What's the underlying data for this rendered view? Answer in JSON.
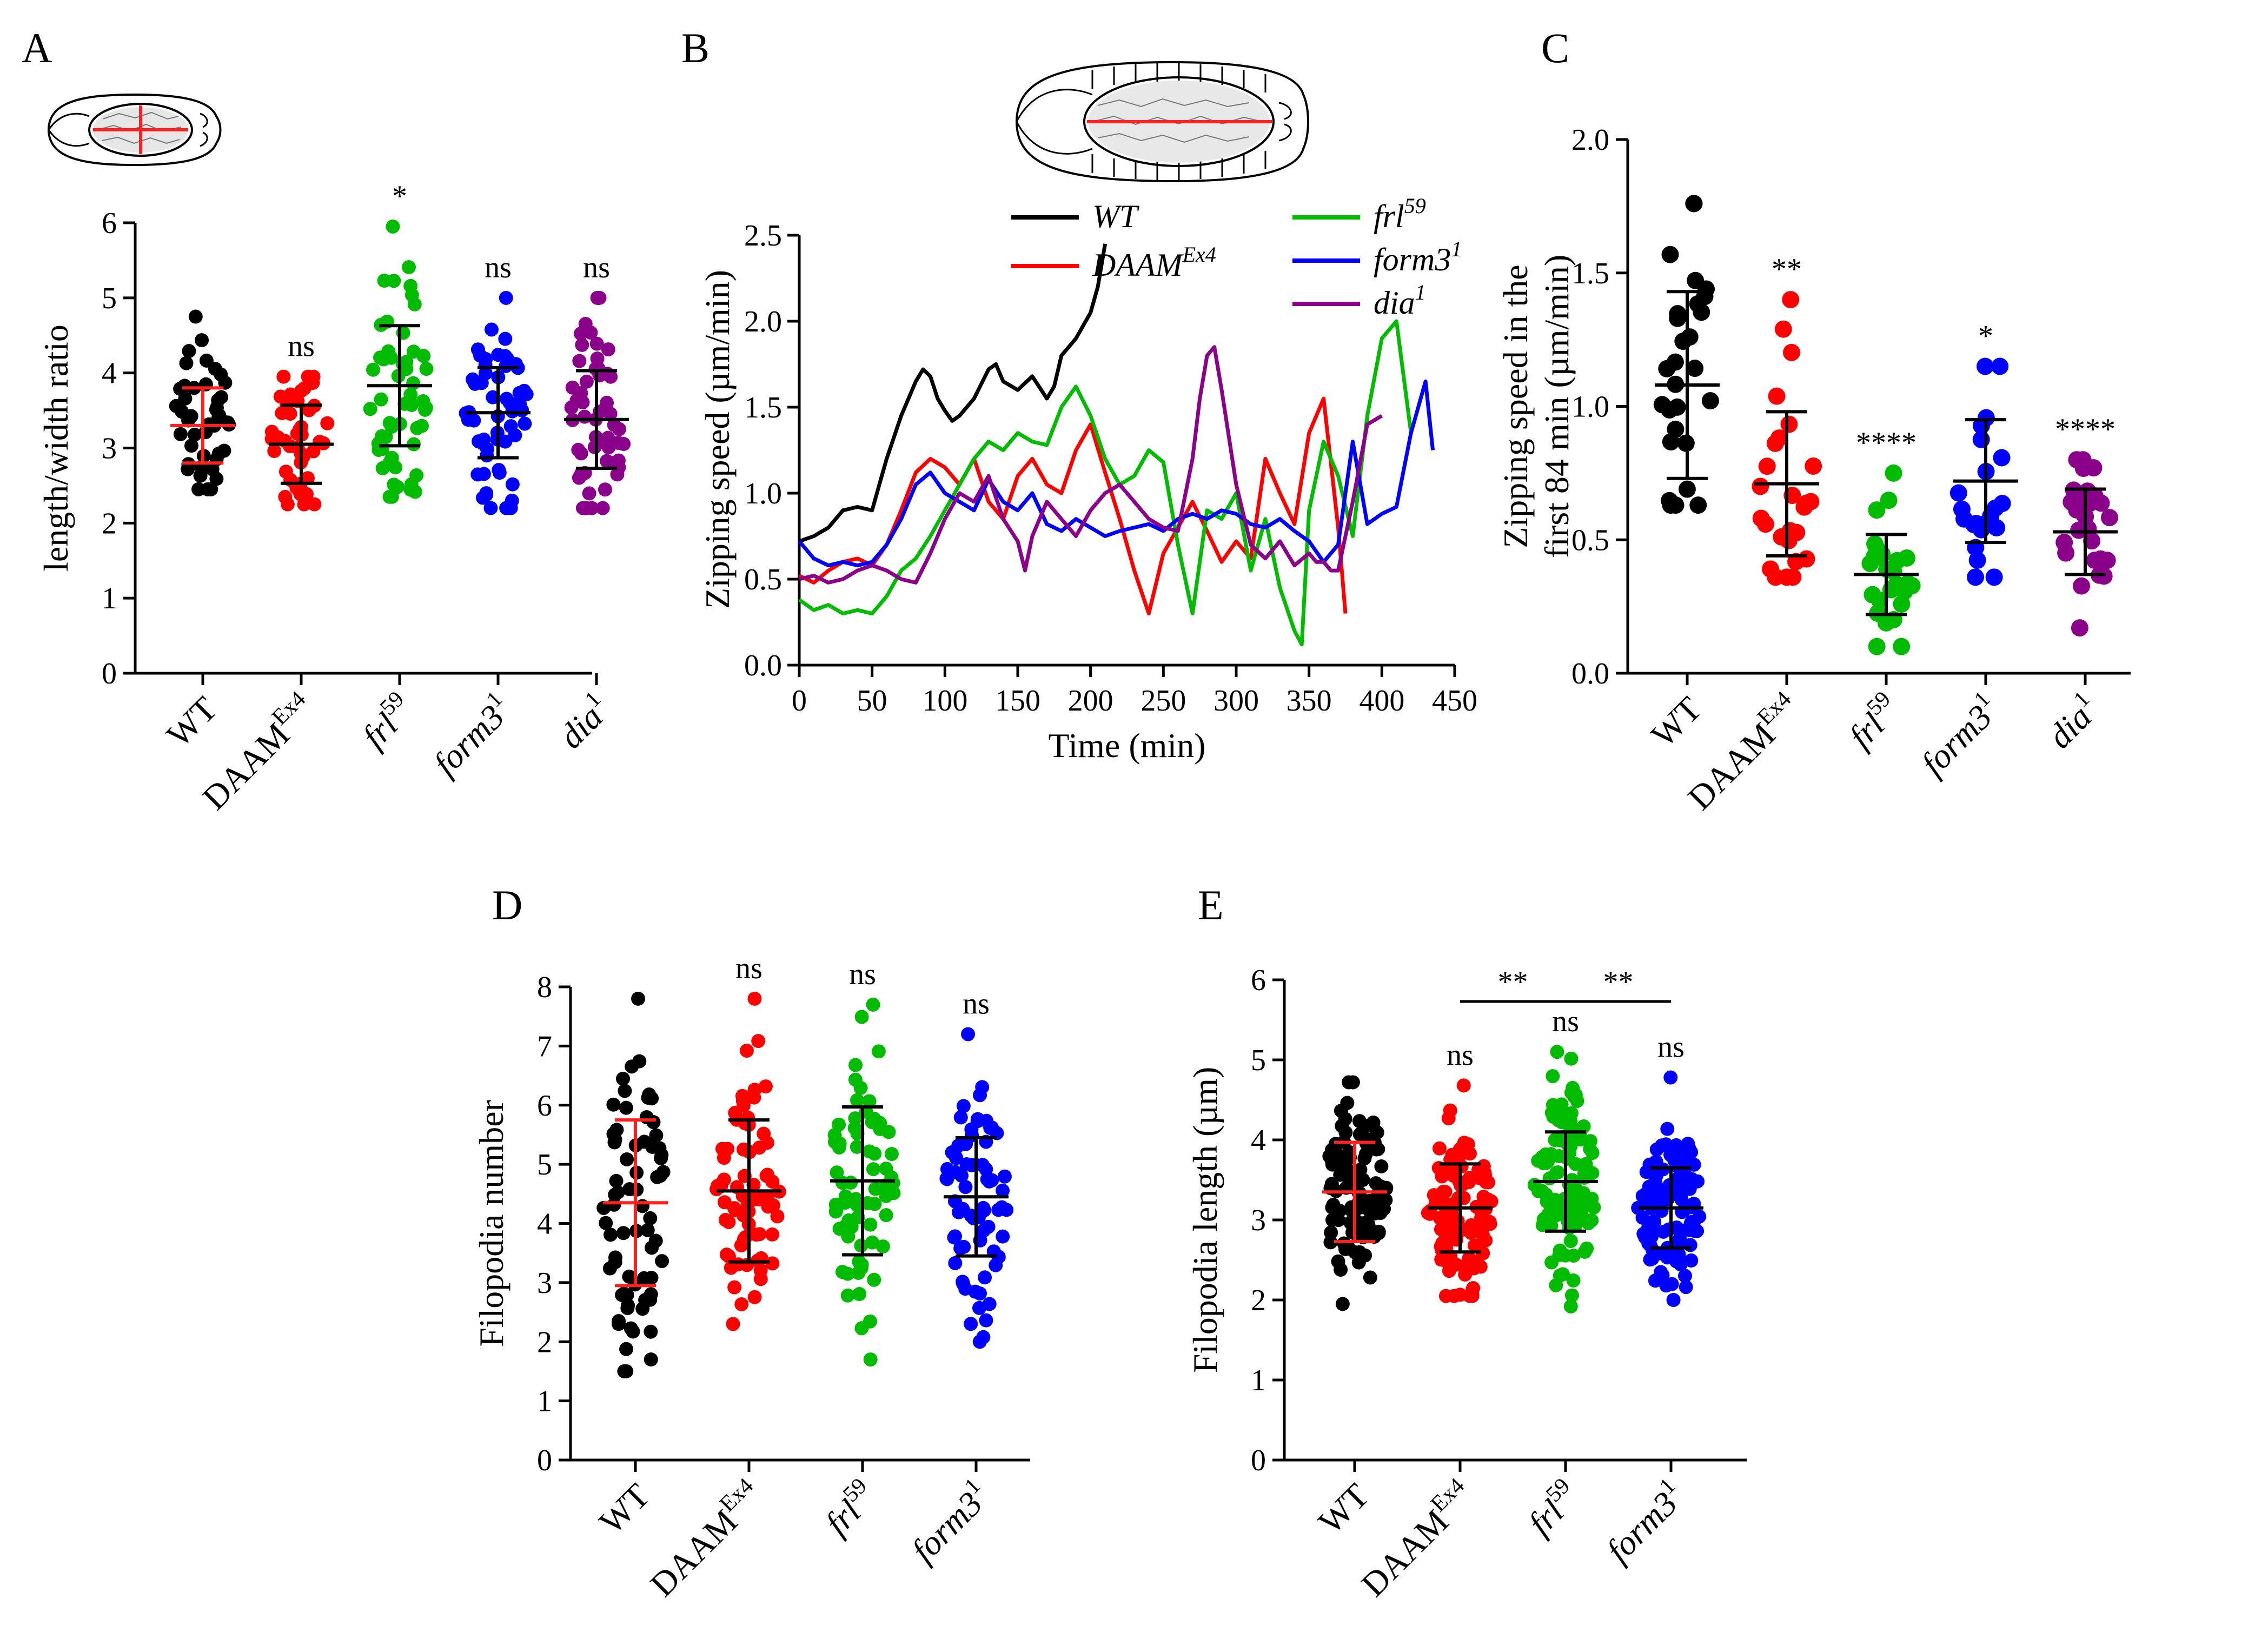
{
  "panel_letters": {
    "A": "A",
    "B": "B",
    "C": "C",
    "D": "D",
    "E": "E"
  },
  "colors": {
    "WT": "#000000",
    "DAAM": "#ff0000",
    "frl": "#00bb00",
    "form3": "#0000ff",
    "dia": "#8b008b",
    "mean_red": "#ff2020"
  },
  "chart_data": [
    {
      "id": "A",
      "type": "scatter",
      "ylabel": "length/width ratio",
      "ylim": [
        0,
        6
      ],
      "yticks": [
        0,
        1,
        2,
        3,
        4,
        5,
        6
      ],
      "categories": [
        {
          "base": "WT",
          "sup": ""
        },
        {
          "base": "DAAM",
          "sup": "Ex4"
        },
        {
          "base": "frl",
          "sup": "59"
        },
        {
          "base": "form3",
          "sup": "1"
        },
        {
          "base": "dia",
          "sup": "1"
        }
      ],
      "series": [
        {
          "color": "#000000",
          "mean": 3.3,
          "sd": 0.5,
          "min": 2.45,
          "max": 4.75,
          "n": 45
        },
        {
          "color": "#ff0000",
          "mean": 3.05,
          "sd": 0.52,
          "min": 2.25,
          "max": 3.95,
          "n": 45
        },
        {
          "color": "#00bb00",
          "mean": 3.83,
          "sd": 0.8,
          "min": 2.35,
          "max": 5.95,
          "n": 55
        },
        {
          "color": "#0000ff",
          "mean": 3.47,
          "sd": 0.6,
          "min": 2.2,
          "max": 5.0,
          "n": 55
        },
        {
          "color": "#8b008b",
          "mean": 3.38,
          "sd": 0.65,
          "min": 2.2,
          "max": 5.0,
          "n": 55
        }
      ],
      "significance": [
        "",
        "ns",
        "*",
        "ns",
        "ns"
      ],
      "wt_error_red": true
    },
    {
      "id": "B",
      "type": "line",
      "xlabel": "Time (min)",
      "ylabel": "Zipping speed (µm/min)",
      "xlim": [
        0,
        450
      ],
      "ylim": [
        0,
        2.5
      ],
      "xticks": [
        0,
        50,
        100,
        150,
        200,
        250,
        300,
        350,
        400,
        450
      ],
      "yticks": [
        0.0,
        0.5,
        1.0,
        1.5,
        2.0,
        2.5
      ],
      "series": [
        {
          "name": "WT",
          "sup": "",
          "color": "#000000",
          "x": [
            0,
            10,
            20,
            30,
            40,
            50,
            55,
            60,
            70,
            80,
            85,
            90,
            95,
            100,
            105,
            110,
            120,
            130,
            135,
            140,
            150,
            160,
            170,
            175,
            180,
            190,
            200,
            205,
            210
          ],
          "y": [
            0.72,
            0.75,
            0.8,
            0.9,
            0.92,
            0.9,
            1.05,
            1.2,
            1.45,
            1.65,
            1.72,
            1.68,
            1.55,
            1.48,
            1.42,
            1.45,
            1.55,
            1.72,
            1.75,
            1.65,
            1.6,
            1.68,
            1.55,
            1.62,
            1.8,
            1.9,
            2.05,
            2.2,
            2.45
          ]
        },
        {
          "name": "DAAM",
          "sup": "Ex4",
          "color": "#ff0000",
          "x": [
            0,
            10,
            20,
            30,
            40,
            50,
            60,
            70,
            80,
            90,
            100,
            110,
            120,
            130,
            140,
            150,
            160,
            170,
            180,
            190,
            200,
            210,
            220,
            230,
            240,
            250,
            260,
            270,
            280,
            290,
            300,
            310,
            320,
            330,
            340,
            350,
            360,
            370,
            375
          ],
          "y": [
            0.52,
            0.48,
            0.55,
            0.6,
            0.62,
            0.58,
            0.7,
            0.9,
            1.12,
            1.2,
            1.15,
            1.05,
            1.2,
            0.95,
            0.85,
            1.1,
            1.2,
            1.05,
            1.0,
            1.25,
            1.4,
            1.12,
            0.85,
            0.55,
            0.3,
            0.65,
            0.8,
            0.95,
            0.78,
            0.6,
            0.72,
            0.62,
            1.2,
            1.0,
            0.82,
            1.35,
            1.55,
            0.8,
            0.3
          ]
        },
        {
          "name": "frl",
          "sup": "59",
          "color": "#00bb00",
          "x": [
            0,
            10,
            20,
            30,
            40,
            50,
            60,
            70,
            80,
            90,
            100,
            110,
            120,
            130,
            140,
            150,
            160,
            170,
            180,
            190,
            200,
            210,
            220,
            230,
            240,
            250,
            260,
            270,
            280,
            290,
            300,
            310,
            320,
            330,
            340,
            345,
            350,
            360,
            370,
            380,
            390,
            400,
            410,
            420
          ],
          "y": [
            0.38,
            0.32,
            0.35,
            0.3,
            0.32,
            0.3,
            0.4,
            0.55,
            0.62,
            0.75,
            0.9,
            1.05,
            1.2,
            1.3,
            1.25,
            1.35,
            1.3,
            1.28,
            1.5,
            1.62,
            1.45,
            1.2,
            1.05,
            1.1,
            1.25,
            1.18,
            0.7,
            0.3,
            0.9,
            0.85,
            1.0,
            0.55,
            0.85,
            0.45,
            0.2,
            0.12,
            0.9,
            1.3,
            1.1,
            0.75,
            1.45,
            1.9,
            2.0,
            1.35
          ]
        },
        {
          "name": "form3",
          "sup": "1",
          "color": "#0000ff",
          "x": [
            0,
            10,
            20,
            30,
            40,
            50,
            60,
            70,
            80,
            90,
            100,
            110,
            120,
            130,
            140,
            150,
            160,
            170,
            180,
            190,
            200,
            210,
            220,
            230,
            240,
            250,
            260,
            270,
            280,
            290,
            300,
            310,
            320,
            330,
            340,
            350,
            360,
            370,
            380,
            390,
            400,
            410,
            420,
            430,
            435
          ],
          "y": [
            0.72,
            0.62,
            0.58,
            0.6,
            0.58,
            0.6,
            0.7,
            0.85,
            1.05,
            1.12,
            1.0,
            0.95,
            0.9,
            1.08,
            0.95,
            0.9,
            1.0,
            0.82,
            0.78,
            0.85,
            0.8,
            0.75,
            0.78,
            0.8,
            0.82,
            0.78,
            0.85,
            0.88,
            0.85,
            0.9,
            0.88,
            0.82,
            0.8,
            0.85,
            0.78,
            0.72,
            0.6,
            0.7,
            1.3,
            0.82,
            0.88,
            0.92,
            1.35,
            1.65,
            1.25
          ]
        },
        {
          "name": "dia",
          "sup": "1",
          "color": "#8b008b",
          "x": [
            0,
            10,
            20,
            30,
            40,
            50,
            60,
            70,
            80,
            90,
            100,
            110,
            120,
            130,
            140,
            150,
            155,
            160,
            170,
            180,
            190,
            200,
            210,
            220,
            230,
            240,
            250,
            260,
            270,
            275,
            280,
            285,
            290,
            300,
            310,
            320,
            330,
            340,
            350,
            355,
            360,
            365,
            370,
            380,
            390,
            400
          ],
          "y": [
            0.5,
            0.52,
            0.48,
            0.5,
            0.55,
            0.58,
            0.55,
            0.5,
            0.48,
            0.65,
            0.85,
            1.0,
            0.95,
            1.1,
            0.85,
            0.72,
            0.55,
            0.75,
            0.95,
            0.85,
            0.75,
            0.9,
            1.0,
            1.05,
            0.95,
            0.85,
            0.8,
            0.78,
            1.2,
            1.55,
            1.8,
            1.85,
            1.6,
            1.05,
            0.7,
            0.62,
            0.72,
            0.58,
            0.65,
            0.6,
            0.6,
            0.55,
            0.55,
            0.95,
            1.4,
            1.45
          ]
        }
      ]
    },
    {
      "id": "C",
      "type": "scatter",
      "ylabel": "Zipping speed in the first 84 min (µm/min)",
      "ylabel_lines": [
        "Zipping speed in the",
        "first 84 min (µm/min)"
      ],
      "ylim": [
        0,
        2.0
      ],
      "yticks": [
        0.0,
        0.5,
        1.0,
        1.5,
        2.0
      ],
      "categories": [
        {
          "base": "WT",
          "sup": ""
        },
        {
          "base": "DAAM",
          "sup": "Ex4"
        },
        {
          "base": "frl",
          "sup": "59"
        },
        {
          "base": "form3",
          "sup": "1"
        },
        {
          "base": "dia",
          "sup": "1"
        }
      ],
      "series": [
        {
          "color": "#000000",
          "mean": 1.08,
          "sd": 0.35,
          "min": 0.63,
          "max": 1.76,
          "n": 28
        },
        {
          "color": "#ff0000",
          "mean": 0.71,
          "sd": 0.27,
          "min": 0.36,
          "max": 1.4,
          "n": 26
        },
        {
          "color": "#00bb00",
          "mean": 0.37,
          "sd": 0.15,
          "min": 0.1,
          "max": 0.75,
          "n": 26
        },
        {
          "color": "#0000ff",
          "mean": 0.72,
          "sd": 0.23,
          "min": 0.36,
          "max": 1.15,
          "n": 22
        },
        {
          "color": "#8b008b",
          "mean": 0.53,
          "sd": 0.16,
          "min": 0.17,
          "max": 0.8,
          "n": 26
        }
      ],
      "significance": [
        "",
        "**",
        "****",
        "*",
        "****"
      ],
      "wt_error_red": false
    },
    {
      "id": "D",
      "type": "scatter",
      "ylabel": "Filopodia number",
      "ylim": [
        0,
        8
      ],
      "yticks": [
        0,
        1,
        2,
        3,
        4,
        5,
        6,
        7,
        8
      ],
      "categories": [
        {
          "base": "WT",
          "sup": ""
        },
        {
          "base": "DAAM",
          "sup": "Ex4"
        },
        {
          "base": "frl",
          "sup": "59"
        },
        {
          "base": "form3",
          "sup": "1"
        }
      ],
      "series": [
        {
          "color": "#000000",
          "mean": 4.35,
          "sd": 1.4,
          "min": 1.5,
          "max": 7.8,
          "n": 70
        },
        {
          "color": "#ff0000",
          "mean": 4.55,
          "sd": 1.2,
          "min": 2.3,
          "max": 7.8,
          "n": 70
        },
        {
          "color": "#00bb00",
          "mean": 4.72,
          "sd": 1.25,
          "min": 1.7,
          "max": 7.7,
          "n": 70
        },
        {
          "color": "#0000ff",
          "mean": 4.45,
          "sd": 1.0,
          "min": 2.0,
          "max": 7.2,
          "n": 70
        }
      ],
      "significance": [
        "",
        "ns",
        "ns",
        "ns"
      ],
      "wt_error_red": true
    },
    {
      "id": "E",
      "type": "scatter",
      "ylabel": "Filopodia length (µm)",
      "ylim": [
        0,
        6
      ],
      "yticks": [
        0,
        1,
        2,
        3,
        4,
        5,
        6
      ],
      "categories": [
        {
          "base": "WT",
          "sup": ""
        },
        {
          "base": "DAAM",
          "sup": "Ex4"
        },
        {
          "base": "frl",
          "sup": "59"
        },
        {
          "base": "form3",
          "sup": "1"
        }
      ],
      "series": [
        {
          "color": "#000000",
          "mean": 3.35,
          "sd": 0.62,
          "min": 1.95,
          "max": 4.72,
          "n": 110
        },
        {
          "color": "#ff0000",
          "mean": 3.15,
          "sd": 0.55,
          "min": 2.05,
          "max": 4.68,
          "n": 110
        },
        {
          "color": "#00bb00",
          "mean": 3.48,
          "sd": 0.62,
          "min": 1.92,
          "max": 5.1,
          "n": 110
        },
        {
          "color": "#0000ff",
          "mean": 3.15,
          "sd": 0.5,
          "min": 2.0,
          "max": 4.78,
          "n": 110
        }
      ],
      "significance": [
        "",
        "ns",
        "ns",
        "ns"
      ],
      "brackets": [
        {
          "from": 1,
          "to": 2,
          "label": "**"
        },
        {
          "from": 2,
          "to": 3,
          "label": "**"
        }
      ],
      "wt_error_red": true
    }
  ]
}
